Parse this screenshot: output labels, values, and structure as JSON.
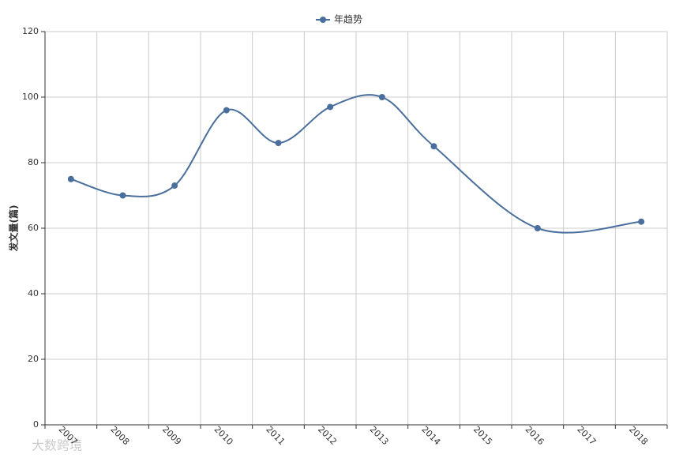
{
  "chart_data": {
    "type": "line",
    "y_label": "发文量(篇)",
    "x": [
      2007,
      2008,
      2009,
      2010,
      2011,
      2012,
      2013,
      2014,
      2016,
      2018
    ],
    "series": [
      {
        "name": "年趋势",
        "color": "#4a6f9c",
        "values": [
          75,
          70,
          73,
          96,
          86,
          97,
          100,
          85,
          60,
          62
        ]
      }
    ],
    "xlim": [
      2006.5,
      2018.5
    ],
    "xticks": [
      2007,
      2008,
      2009,
      2010,
      2011,
      2012,
      2013,
      2014,
      2015,
      2016,
      2017,
      2018
    ],
    "ylim": [
      0,
      120
    ],
    "yticks": [
      0,
      20,
      40,
      60,
      80,
      100,
      120
    ],
    "grid": true,
    "smooth": true,
    "legend": "top",
    "watermark": "大数跨境"
  }
}
